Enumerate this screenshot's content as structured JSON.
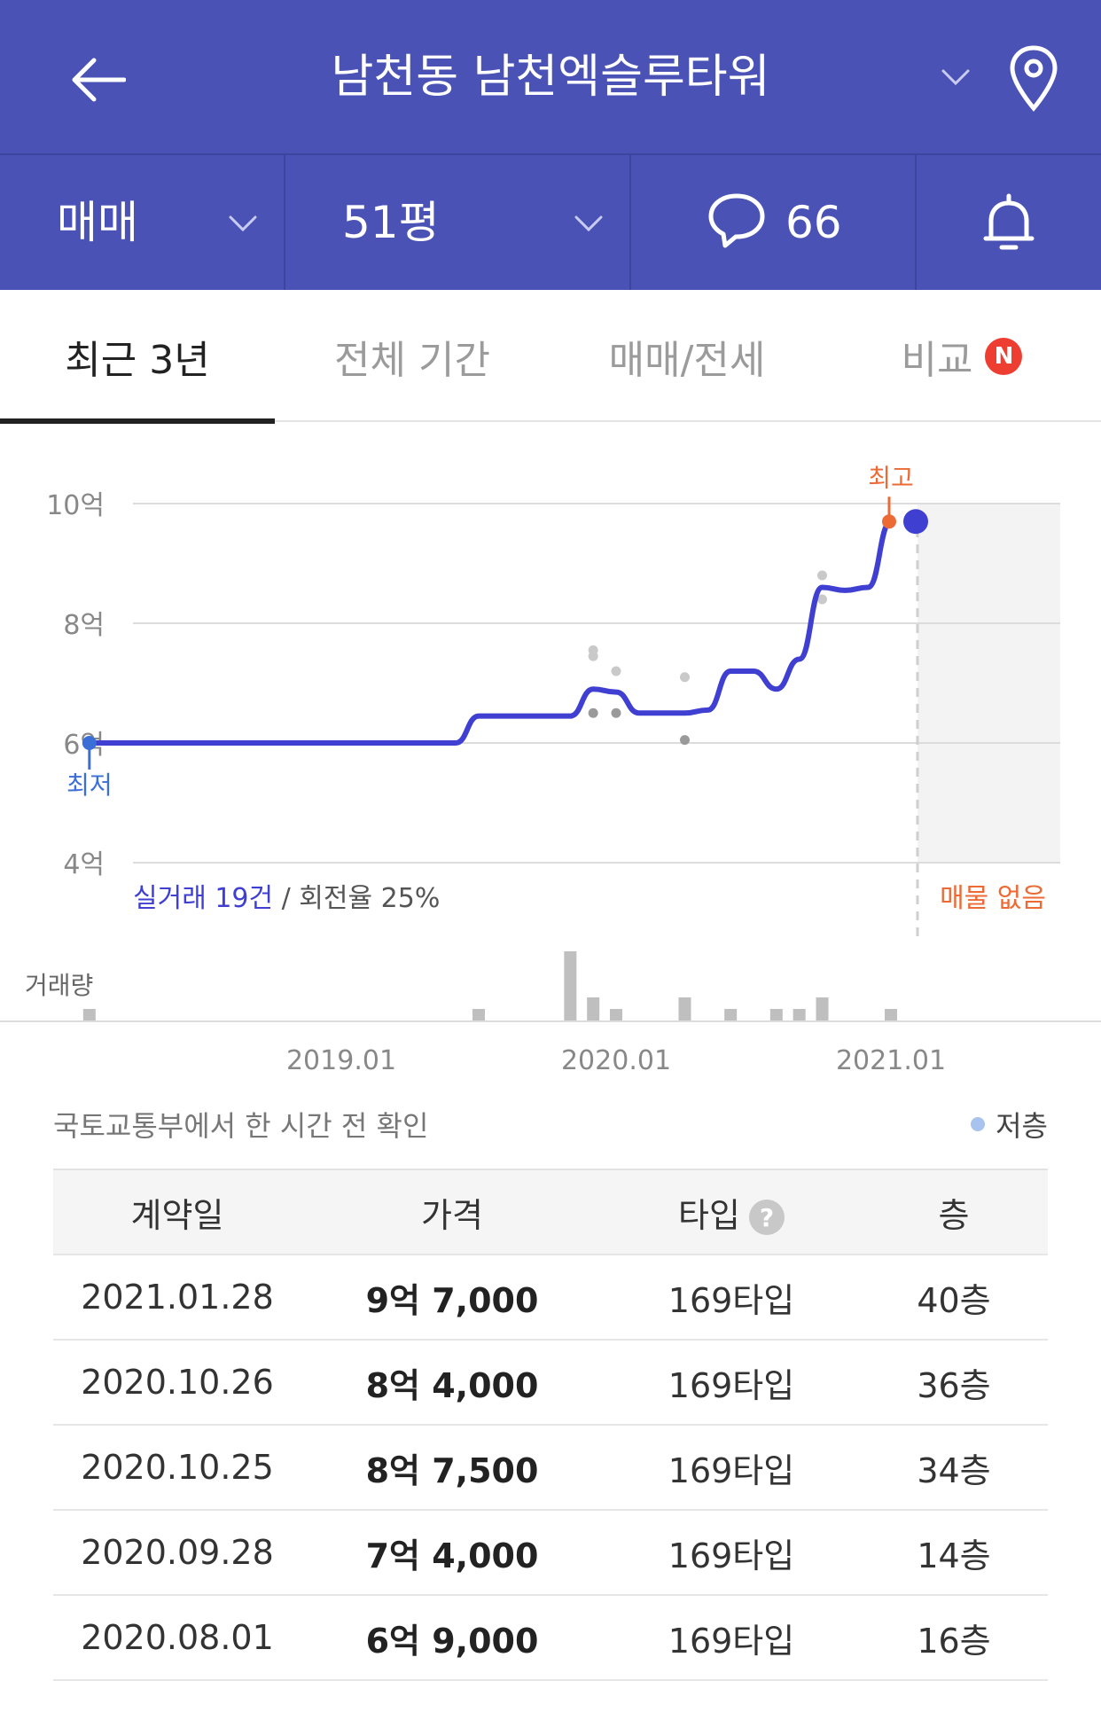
{
  "header": {
    "title": "남천동 남천엑슬루타워",
    "back_icon": "arrow-left-icon",
    "location_icon": "map-pin-icon"
  },
  "toolbar": {
    "trade_type": "매매",
    "area": "51평",
    "comment_count": "66",
    "comment_icon": "speech-bubble-icon",
    "alert_icon": "bell-icon"
  },
  "tabs": [
    {
      "label": "최근 3년",
      "active": true
    },
    {
      "label": "전체 기간",
      "active": false
    },
    {
      "label": "매매/전세",
      "active": false
    },
    {
      "label": "비교",
      "active": false,
      "badge": "N"
    }
  ],
  "chart": {
    "max_label": "최고",
    "min_label": "최저",
    "summary_count": "실거래 19건",
    "summary_separator": " / ",
    "summary_turnover": "회전율 25%",
    "no_listing": "매물 없음",
    "volume_label": "거래량",
    "colors": {
      "line": "#3f3fd1",
      "max": "#ec6a35",
      "min": "#3b6fd8"
    }
  },
  "chart_data": {
    "type": "line",
    "ylim": [
      4,
      10
    ],
    "y_ticks": [
      "10억",
      "8억",
      "6억",
      "4억"
    ],
    "x_ticks": [
      "2019.01",
      "2020.01",
      "2021.01"
    ],
    "x_range": [
      "2018.02",
      "2021.06"
    ],
    "series": [
      {
        "x": [
          "2018.02",
          "2019.06",
          "2019.07",
          "2019.11",
          "2019.12",
          "2020.01",
          "2020.02",
          "2020.04",
          "2020.05",
          "2020.06",
          "2020.07",
          "2020.08",
          "2020.09",
          "2020.10",
          "2020.11",
          "2020.12",
          "2021.01"
        ],
        "y": [
          6.0,
          6.0,
          6.45,
          6.45,
          6.9,
          6.85,
          6.5,
          6.5,
          6.55,
          7.2,
          7.2,
          6.9,
          7.4,
          8.6,
          8.55,
          8.6,
          9.7
        ]
      }
    ],
    "points": [
      {
        "x": "2019.12",
        "y": 7.55
      },
      {
        "x": "2019.12",
        "y": 7.45
      },
      {
        "x": "2020.01",
        "y": 7.2
      },
      {
        "x": "2019.12",
        "y": 6.5
      },
      {
        "x": "2020.01",
        "y": 6.5
      },
      {
        "x": "2020.04",
        "y": 7.1
      },
      {
        "x": "2020.04",
        "y": 6.05
      },
      {
        "x": "2020.10",
        "y": 8.8
      },
      {
        "x": "2020.10",
        "y": 8.4
      }
    ],
    "volume": [
      {
        "x": "2018.02",
        "count": 1
      },
      {
        "x": "2019.07",
        "count": 1
      },
      {
        "x": "2019.11",
        "count": 6
      },
      {
        "x": "2019.12",
        "count": 2
      },
      {
        "x": "2020.01",
        "count": 1
      },
      {
        "x": "2020.04",
        "count": 2
      },
      {
        "x": "2020.06",
        "count": 1
      },
      {
        "x": "2020.08",
        "count": 1
      },
      {
        "x": "2020.09",
        "count": 1
      },
      {
        "x": "2020.10",
        "count": 2
      },
      {
        "x": "2021.01",
        "count": 1
      }
    ],
    "max_point": {
      "x": "2021.01",
      "y": 9.7
    },
    "min_point": {
      "x": "2018.02",
      "y": 6.0
    }
  },
  "source_text": "국토교통부에서 한 시간 전 확인",
  "legend": {
    "low_floor": "저층"
  },
  "table": {
    "headers": [
      "계약일",
      "가격",
      "타입",
      "층"
    ],
    "type_help": "?",
    "rows": [
      {
        "date": "2021.01.28",
        "price": "9억 7,000",
        "type": "169타입",
        "floor": "40층"
      },
      {
        "date": "2020.10.26",
        "price": "8억 4,000",
        "type": "169타입",
        "floor": "36층"
      },
      {
        "date": "2020.10.25",
        "price": "8억 7,500",
        "type": "169타입",
        "floor": "34층"
      },
      {
        "date": "2020.09.28",
        "price": "7억 4,000",
        "type": "169타입",
        "floor": "14층"
      },
      {
        "date": "2020.08.01",
        "price": "6억 9,000",
        "type": "169타입",
        "floor": "16층"
      }
    ]
  }
}
